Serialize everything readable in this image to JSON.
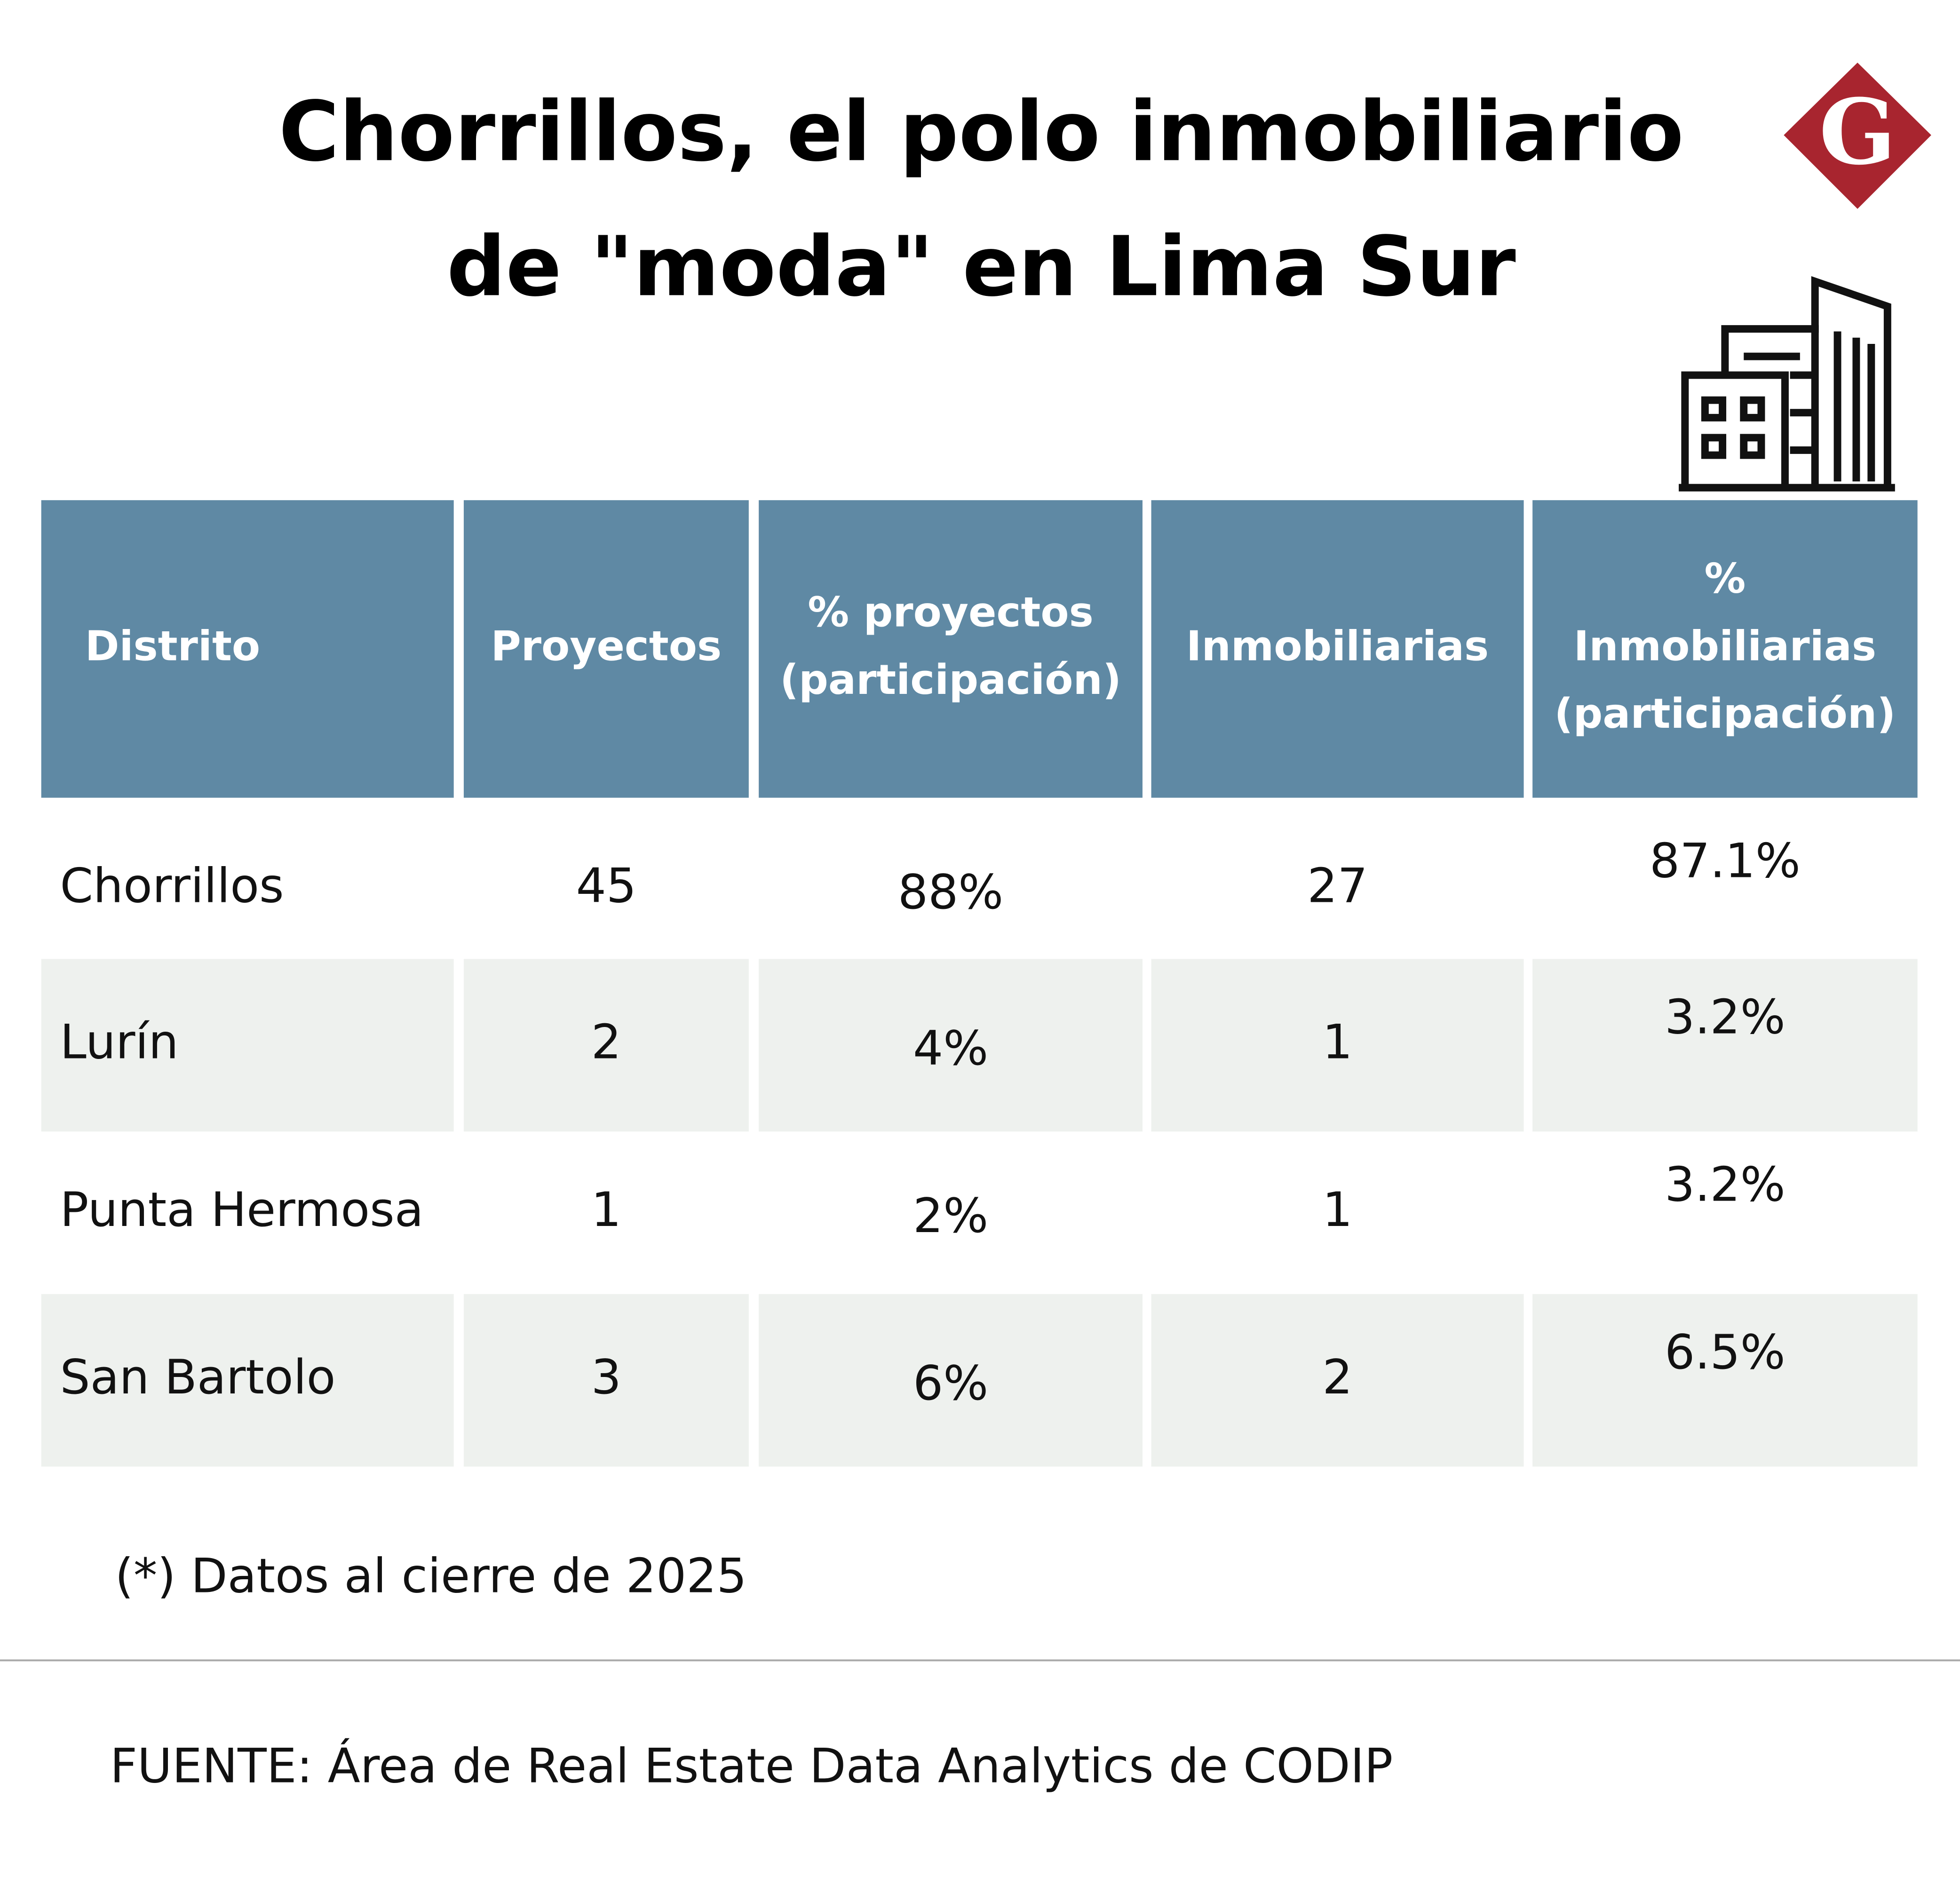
{
  "header": {
    "title_lines": [
      "Chorrillos, el polo inmobiliario",
      "de \"moda\" en Lima Sur"
    ],
    "logo": "G"
  },
  "table": {
    "headers": [
      [
        "Distrito"
      ],
      [
        "Proyectos"
      ],
      [
        "% proyectos",
        "(participación)"
      ],
      [
        "Inmobiliarias"
      ],
      [
        "%",
        "Inmobiliarias",
        "(participación)"
      ]
    ],
    "rows": [
      [
        "Chorrillos",
        "45",
        "88%",
        "27",
        "87.1%"
      ],
      [
        "Lurín",
        "2",
        "4%",
        "1",
        "3.2%"
      ],
      [
        "Punta Hermosa",
        "1",
        "2%",
        "1",
        "3.2%"
      ],
      [
        "San Bartolo",
        "3",
        "6%",
        "2",
        "6.5%"
      ]
    ]
  },
  "footnote": "(*) Datos al cierre de 2025",
  "source": "FUENTE: Área de Real Estate Data Analytics de CODIP"
}
